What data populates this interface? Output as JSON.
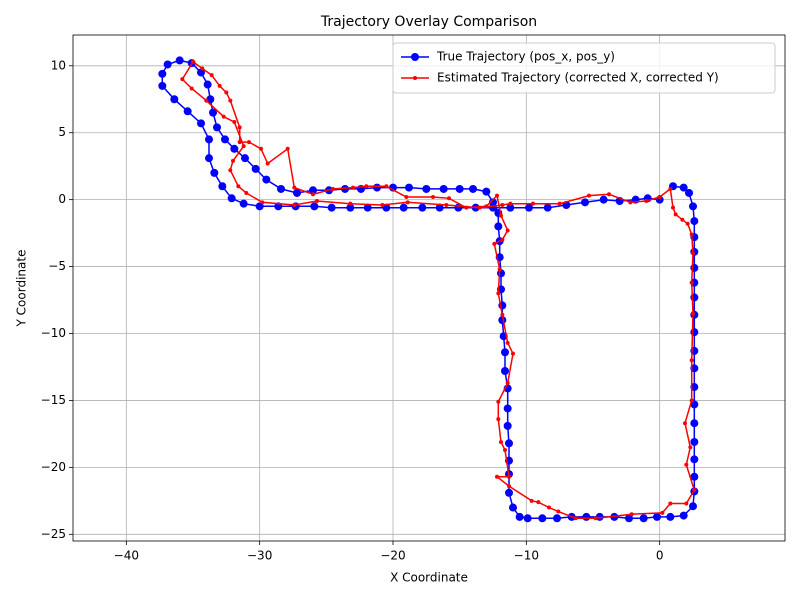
{
  "chart_data": {
    "type": "line",
    "title": "Trajectory Overlay Comparison",
    "x_label": "X Coordinate",
    "y_label": "Y Coordinate",
    "xlim": [
      -44,
      9.4
    ],
    "ylim": [
      -25.5,
      12.3
    ],
    "xticks": [
      {
        "value": -40,
        "label": "−40"
      },
      {
        "value": -30,
        "label": "−30"
      },
      {
        "value": -20,
        "label": "−20"
      },
      {
        "value": -10,
        "label": "−10"
      },
      0
    ],
    "yticks": [
      {
        "value": -25,
        "label": "−25"
      },
      {
        "value": -20,
        "label": "−20"
      },
      {
        "value": -15,
        "label": "−15"
      },
      {
        "value": -10,
        "label": "−10"
      },
      {
        "value": -5,
        "label": "−5"
      },
      0,
      5,
      10
    ],
    "grid": true,
    "legend": "upper right",
    "series": [
      {
        "name": "True Trajectory (pos_x, pos_y)",
        "color": "#0000ff",
        "marker_size": 4,
        "x": [
          1,
          1.8,
          2.2,
          2.5,
          2.6,
          2.6,
          2.6,
          2.6,
          2.6,
          2.6,
          2.6,
          2.6,
          2.6,
          2.6,
          2.6,
          2.6,
          2.6,
          2.6,
          2.6,
          2.6,
          2.6,
          2.5,
          1.8,
          0.8,
          -0.2,
          -1.2,
          -2.3,
          -3.4,
          -4.5,
          -5.5,
          -6.6,
          -7.7,
          -8.8,
          -9.9,
          -10.5,
          -11,
          -11.3,
          -11.3,
          -11.3,
          -11.3,
          -11.4,
          -11.4,
          -11.4,
          -11.6,
          -11.6,
          -11.7,
          -11.8,
          -11.8,
          -11.9,
          -11.9,
          -12,
          -12,
          -12.1,
          -12.1,
          -12.5,
          -13,
          -14,
          -15,
          -16.2,
          -17.5,
          -18.8,
          -20,
          -21.2,
          -22.4,
          -23.6,
          -24.8,
          -26,
          -27.2,
          -28.4,
          -29.5,
          -30.3,
          -31.1,
          -31.9,
          -32.6,
          -33.2,
          -33.5,
          -33.7,
          -33.9,
          -34.4,
          -35.1,
          -36,
          -36.9,
          -37.3,
          -37.3,
          -36.4,
          -35.4,
          -34.4,
          -33.8,
          -33.8,
          -33.4,
          -32.8,
          -32.1,
          -31.2,
          -30,
          -28.6,
          -27.3,
          -25.9,
          -24.6,
          -23.2,
          -21.9,
          -20.5,
          -19.2,
          -17.8,
          -16.5,
          -15.1,
          -13.8,
          -12.5,
          -11.2,
          -9.8,
          -8.4,
          -7,
          -5.6,
          -4.2,
          -3,
          -1.8,
          -0.9,
          0
        ],
        "values": [
          1,
          0.9,
          0.5,
          -0.5,
          -1.6,
          -2.8,
          -3.9,
          -5.1,
          -6.2,
          -7.3,
          -8.6,
          -9.9,
          -11.3,
          -12.6,
          -14,
          -15.3,
          -16.7,
          -18.1,
          -19.4,
          -20.7,
          -21.8,
          -22.9,
          -23.6,
          -23.7,
          -23.7,
          -23.8,
          -23.8,
          -23.7,
          -23.7,
          -23.7,
          -23.7,
          -23.8,
          -23.8,
          -23.8,
          -23.7,
          -23,
          -21.9,
          -20.5,
          -19.5,
          -18.2,
          -16.9,
          -15.6,
          -14.1,
          -12.8,
          -11.4,
          -10.2,
          -9,
          -7.9,
          -6.7,
          -5.5,
          -4.3,
          -3.1,
          -2,
          -1,
          -0.2,
          0.6,
          0.8,
          0.8,
          0.8,
          0.8,
          0.9,
          0.9,
          0.9,
          0.8,
          0.8,
          0.7,
          0.7,
          0.5,
          0.8,
          1.5,
          2.3,
          3.1,
          3.8,
          4.5,
          5.4,
          6.5,
          7.5,
          8.6,
          9.5,
          10.2,
          10.4,
          10.1,
          9.4,
          8.5,
          7.5,
          6.6,
          5.7,
          4.5,
          3.1,
          2,
          1,
          0.1,
          -0.3,
          -0.5,
          -0.5,
          -0.5,
          -0.5,
          -0.6,
          -0.6,
          -0.6,
          -0.6,
          -0.6,
          -0.6,
          -0.6,
          -0.6,
          -0.6,
          -0.6,
          -0.6,
          -0.6,
          -0.6,
          -0.4,
          -0.2,
          0,
          -0.1,
          0,
          0.1,
          0
        ]
      },
      {
        "name": "Estimated Trajectory (corrected X, corrected Y)",
        "color": "#ff0000",
        "marker_size": 2,
        "x": [
          0,
          0.8,
          1,
          1.2,
          1.7,
          2.1,
          2.4,
          2.5,
          2.4,
          2.5,
          2.4,
          2.4,
          1.9,
          2.3,
          2,
          2.6,
          2,
          0.8,
          0.2,
          -2.1,
          -4.8,
          -6.3,
          -7.6,
          -8.3,
          -9.1,
          -9.6,
          -11.3,
          -12.2,
          -11.3,
          -11.6,
          -11.9,
          -12.1,
          -12.1,
          -11.4,
          -11,
          -11.4,
          -11.8,
          -12.1,
          -12,
          -12.4,
          -11.8,
          -11.4,
          -11.9,
          -12.2,
          -13,
          -14.5,
          -15.8,
          -17,
          -19,
          -20.5,
          -22,
          -23,
          -24.5,
          -26,
          -27.4,
          -27.9,
          -29.4,
          -29.9,
          -30.8,
          -31.5,
          -31.5,
          -32.2,
          -32.5,
          -33,
          -33.6,
          -34.3,
          -35,
          -35.8,
          -35.1,
          -34,
          -32.7,
          -31.9,
          -31.2,
          -32,
          -32.2,
          -31.6,
          -31,
          -29.8,
          -27.4,
          -25.7,
          -23.2,
          -20.8,
          -18.9,
          -16,
          -13.5,
          -11.8,
          -11.2,
          -9.5,
          -7.5,
          -5.3,
          -3.8,
          -2.2,
          -1,
          0
        ],
        "values": [
          0.2,
          0.8,
          -0.6,
          -1.1,
          -1.5,
          -1.8,
          -2.6,
          -4,
          -6.2,
          -8.5,
          -12,
          -15,
          -16.7,
          -18.5,
          -19.8,
          -21.7,
          -22.7,
          -22.7,
          -23.4,
          -23.5,
          -23.8,
          -23.8,
          -23.3,
          -23,
          -22.6,
          -22.5,
          -21.4,
          -20.7,
          -20.7,
          -18.7,
          -18.1,
          -16.4,
          -15.1,
          -13.7,
          -11.5,
          -10.7,
          -8.6,
          -7,
          -5.2,
          -3.3,
          -3,
          -2.3,
          -1.2,
          0.3,
          -0.5,
          -0.6,
          0.1,
          0.2,
          0.2,
          1,
          1,
          0.9,
          0.8,
          0.4,
          0.9,
          3.8,
          2.7,
          3.8,
          4.3,
          4.3,
          5.4,
          7.4,
          8,
          8.5,
          9.3,
          9.8,
          10.3,
          9,
          8.3,
          7.4,
          6.2,
          5.8,
          4,
          2.9,
          2.2,
          1,
          0.5,
          -0.2,
          -0.4,
          -0.1,
          -0.3,
          -0.4,
          -0.2,
          -0.4,
          -0.6,
          -0.4,
          -0.3,
          -0.3,
          -0.3,
          0.3,
          0.4,
          -0.2,
          -0.1,
          0.2
        ]
      }
    ]
  }
}
